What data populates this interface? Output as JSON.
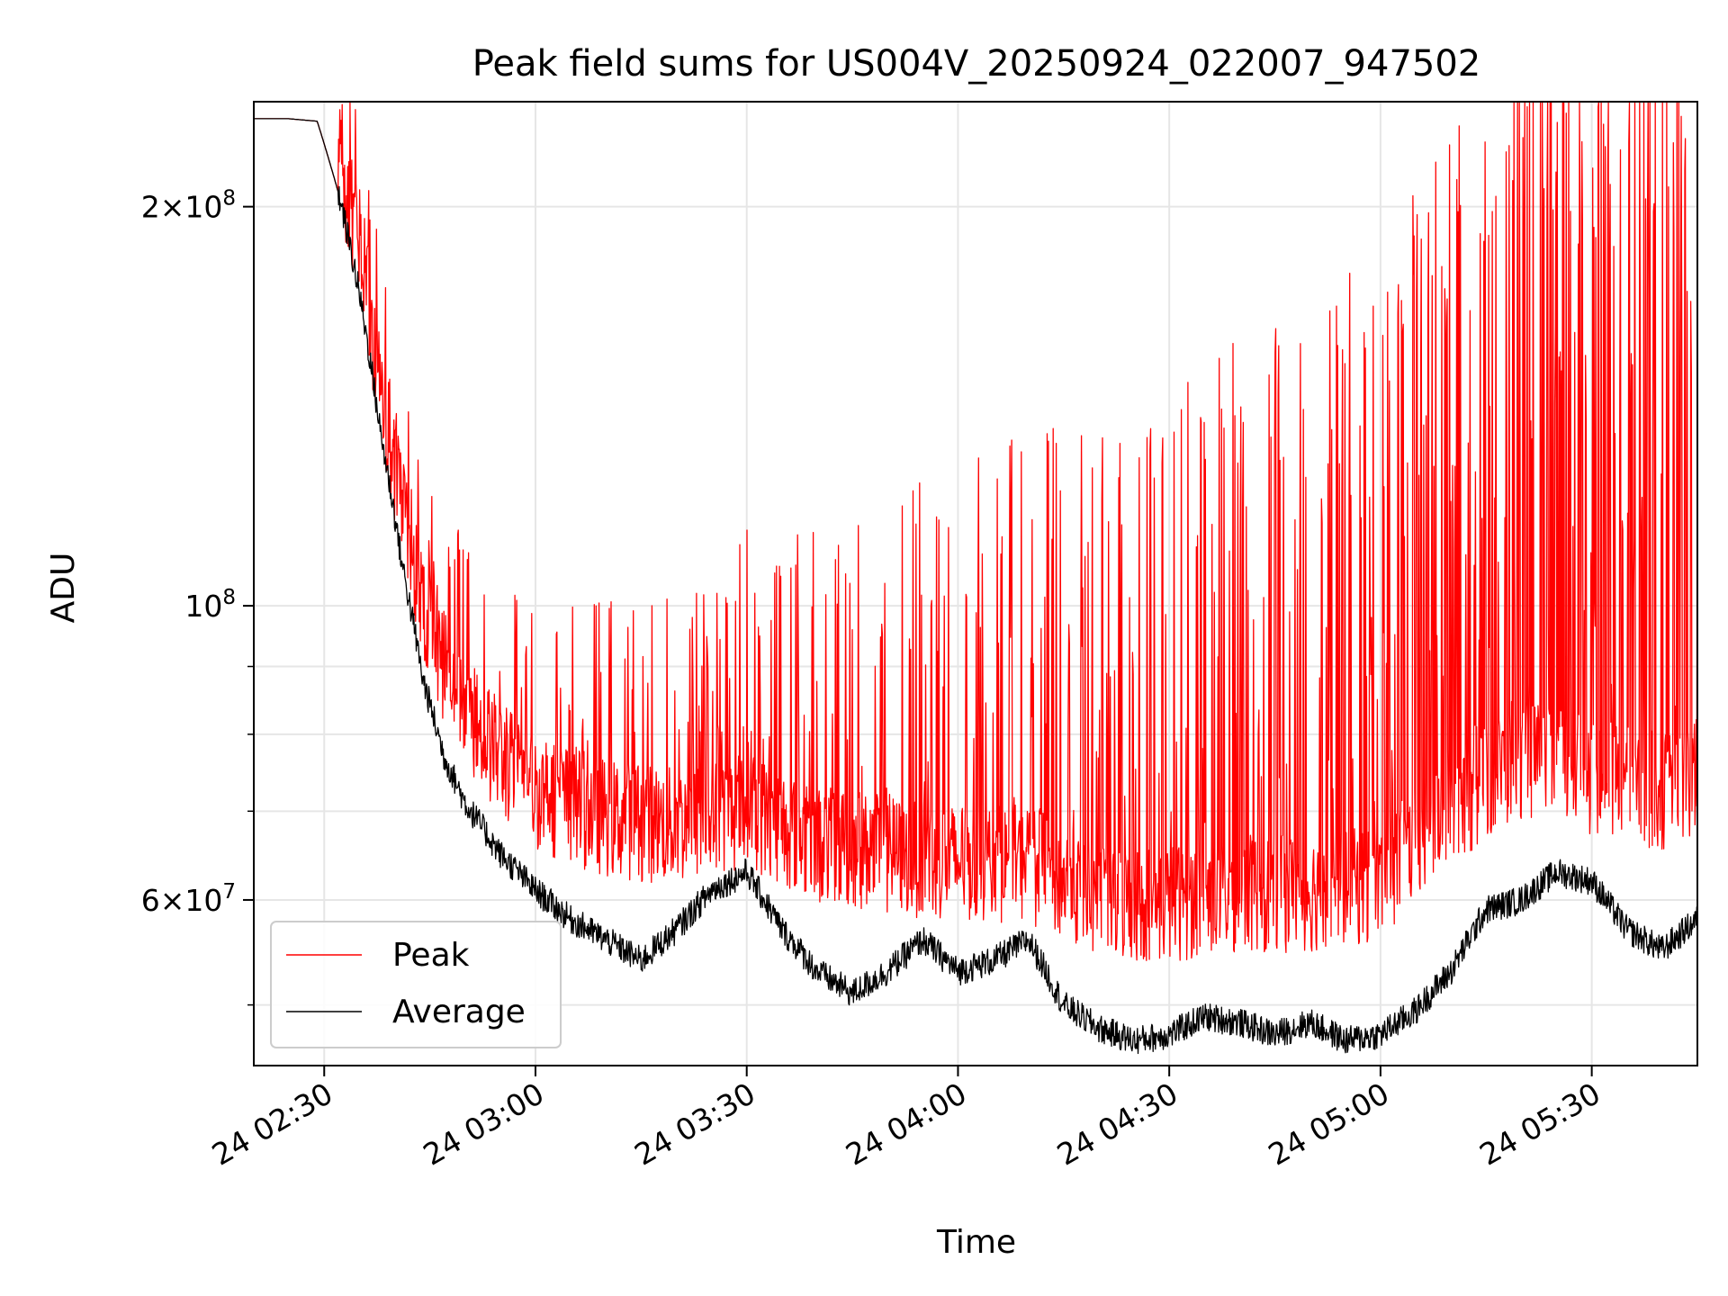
{
  "chart_data": {
    "type": "line",
    "title": "Peak field sums for US004V_20250924_022007_947502",
    "xlabel": "Time",
    "ylabel": "ADU",
    "yscale": "log",
    "ylim": [
      45000000,
      240000000
    ],
    "xlim": [
      "24 02:20",
      "24 05:45"
    ],
    "x_ticks": [
      {
        "t": "24 02:30",
        "label": "24 02:30"
      },
      {
        "t": "24 03:00",
        "label": "24 03:00"
      },
      {
        "t": "24 03:30",
        "label": "24 03:30"
      },
      {
        "t": "24 04:00",
        "label": "24 04:00"
      },
      {
        "t": "24 04:30",
        "label": "24 04:30"
      },
      {
        "t": "24 05:00",
        "label": "24 05:00"
      },
      {
        "t": "24 05:30",
        "label": "24 05:30"
      }
    ],
    "y_major_ticks": [
      {
        "value": 60000000,
        "mantissa": "6",
        "exp": "7"
      },
      {
        "value": 100000000,
        "mantissa": "",
        "exp": "8"
      },
      {
        "value": 200000000,
        "mantissa": "2",
        "exp": "8"
      }
    ],
    "y_minor_ticks": [
      50000000,
      70000000,
      80000000,
      90000000
    ],
    "grid": true,
    "legend_position": "bottom-left",
    "series": [
      {
        "name": "Peak",
        "color": "#ff0000",
        "points": [
          [
            "24 02:20",
            233000000
          ],
          [
            "24 02:25",
            233000000
          ],
          [
            "24 02:29",
            232000000
          ],
          [
            "24 02:32",
            205000000
          ],
          [
            "24 02:35",
            175000000
          ],
          [
            "24 02:38",
            138000000
          ],
          [
            "24 02:41",
            112000000
          ],
          [
            "24 02:44",
            95000000
          ],
          [
            "24 02:47",
            85000000
          ],
          [
            "24 02:50",
            78000000
          ],
          [
            "24 02:55",
            72000000
          ],
          [
            "24 03:00",
            68000000
          ],
          [
            "24 03:10",
            65000000
          ],
          [
            "24 03:20",
            64000000
          ],
          [
            "24 03:30",
            66000000
          ],
          [
            "24 03:40",
            62000000
          ],
          [
            "24 03:50",
            61000000
          ],
          [
            "24 04:00",
            60000000
          ],
          [
            "24 04:10",
            60000000
          ],
          [
            "24 04:20",
            56000000
          ],
          [
            "24 04:30",
            56000000
          ],
          [
            "24 04:40",
            57000000
          ],
          [
            "24 04:50",
            57000000
          ],
          [
            "24 05:00",
            58000000
          ],
          [
            "24 05:10",
            66000000
          ],
          [
            "24 05:20",
            72000000
          ],
          [
            "24 05:30",
            70000000
          ],
          [
            "24 05:40",
            68000000
          ],
          [
            "24 05:45",
            70000000
          ]
        ]
      },
      {
        "name": "Average",
        "color": "#000000",
        "points": [
          [
            "24 02:20",
            233000000
          ],
          [
            "24 02:25",
            233000000
          ],
          [
            "24 02:29",
            232000000
          ],
          [
            "24 02:32",
            205000000
          ],
          [
            "24 02:35",
            172000000
          ],
          [
            "24 02:38",
            135000000
          ],
          [
            "24 02:41",
            108000000
          ],
          [
            "24 02:44",
            88000000
          ],
          [
            "24 02:47",
            77000000
          ],
          [
            "24 02:50",
            71000000
          ],
          [
            "24 02:55",
            65000000
          ],
          [
            "24 03:00",
            61000000
          ],
          [
            "24 03:05",
            58000000
          ],
          [
            "24 03:10",
            56000000
          ],
          [
            "24 03:15",
            54000000
          ],
          [
            "24 03:20",
            57000000
          ],
          [
            "24 03:25",
            61000000
          ],
          [
            "24 03:30",
            63000000
          ],
          [
            "24 03:35",
            57000000
          ],
          [
            "24 03:40",
            53000000
          ],
          [
            "24 03:45",
            51000000
          ],
          [
            "24 03:50",
            53000000
          ],
          [
            "24 03:55",
            56000000
          ],
          [
            "24 04:00",
            53000000
          ],
          [
            "24 04:05",
            54000000
          ],
          [
            "24 04:10",
            56000000
          ],
          [
            "24 04:15",
            50000000
          ],
          [
            "24 04:20",
            48000000
          ],
          [
            "24 04:25",
            47000000
          ],
          [
            "24 04:30",
            47500000
          ],
          [
            "24 04:35",
            49000000
          ],
          [
            "24 04:40",
            48500000
          ],
          [
            "24 04:45",
            47500000
          ],
          [
            "24 04:50",
            48500000
          ],
          [
            "24 04:55",
            47000000
          ],
          [
            "24 05:00",
            47500000
          ],
          [
            "24 05:05",
            49500000
          ],
          [
            "24 05:10",
            53000000
          ],
          [
            "24 05:15",
            59000000
          ],
          [
            "24 05:20",
            60000000
          ],
          [
            "24 05:25",
            63000000
          ],
          [
            "24 05:30",
            62000000
          ],
          [
            "24 05:35",
            57000000
          ],
          [
            "24 05:40",
            55000000
          ],
          [
            "24 05:45",
            58000000
          ]
        ]
      }
    ]
  }
}
